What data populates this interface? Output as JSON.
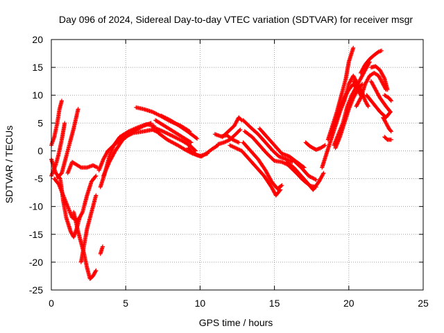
{
  "chart_data": {
    "type": "scatter",
    "title": "Day 096 of 2024, Sidereal Day-to-day VTEC variation (SDTVAR) for receiver msgr",
    "xlabel": "GPS time / hours",
    "ylabel": "SDTVAR / TECUs",
    "xlim": [
      0,
      25
    ],
    "ylim": [
      -25,
      20
    ],
    "xticks": [
      0,
      5,
      10,
      15,
      20,
      25
    ],
    "yticks": [
      -25,
      -20,
      -15,
      -10,
      -5,
      0,
      5,
      10,
      15,
      20
    ],
    "grid": true,
    "marker": "+",
    "color": "#ff0000",
    "series": [
      {
        "points": [
          [
            0.0,
            1.0
          ],
          [
            0.2,
            2.5
          ],
          [
            0.4,
            5
          ],
          [
            0.55,
            7.5
          ],
          [
            0.7,
            9
          ]
        ]
      },
      {
        "points": [
          [
            0.0,
            -1.5
          ],
          [
            0.3,
            -4
          ],
          [
            0.6,
            -5
          ],
          [
            0.8,
            -9
          ],
          [
            1.0,
            -12
          ],
          [
            1.3,
            -14.5
          ],
          [
            1.5,
            -15.5
          ],
          [
            1.7,
            -14
          ],
          [
            1.9,
            -12
          ]
        ]
      },
      {
        "points": [
          [
            0.0,
            -4.5
          ],
          [
            0.3,
            -2.5
          ],
          [
            0.5,
            -0.5
          ],
          [
            0.7,
            2
          ],
          [
            0.9,
            5
          ]
        ]
      },
      {
        "points": [
          [
            0.4,
            -4.8
          ],
          [
            0.7,
            -4
          ],
          [
            0.9,
            -2
          ],
          [
            1.2,
            1
          ],
          [
            1.5,
            4
          ],
          [
            1.8,
            7.5
          ]
        ]
      },
      {
        "points": [
          [
            0.2,
            -5
          ],
          [
            0.5,
            -6
          ],
          [
            0.8,
            -8
          ],
          [
            1.1,
            -10
          ],
          [
            1.4,
            -12
          ],
          [
            1.8,
            -12.5
          ],
          [
            2.1,
            -11
          ],
          [
            2.4,
            -8
          ],
          [
            2.7,
            -5.5
          ],
          [
            3.0,
            -4.5
          ]
        ]
      },
      {
        "points": [
          [
            1.1,
            -4
          ],
          [
            1.4,
            -2
          ],
          [
            1.7,
            -2.5
          ],
          [
            2.0,
            -3
          ],
          [
            2.4,
            -3
          ],
          [
            2.8,
            -2.6
          ],
          [
            3.1,
            -3
          ]
        ]
      },
      {
        "points": [
          [
            1.5,
            -11
          ],
          [
            1.8,
            -14.5
          ],
          [
            2.0,
            -16.5
          ],
          [
            2.2,
            -18.5
          ],
          [
            2.4,
            -21
          ],
          [
            2.6,
            -23
          ],
          [
            2.8,
            -22.5
          ],
          [
            3.0,
            -21.5
          ]
        ]
      },
      {
        "points": [
          [
            2.0,
            -20
          ],
          [
            2.2,
            -17
          ],
          [
            2.4,
            -14
          ],
          [
            2.6,
            -12
          ],
          [
            2.8,
            -10
          ],
          [
            3.0,
            -8
          ]
        ]
      },
      {
        "points": [
          [
            3.3,
            -18.5
          ],
          [
            3.45,
            -17.2
          ]
        ]
      },
      {
        "points": [
          [
            3.2,
            -3.5
          ],
          [
            3.5,
            -1.5
          ],
          [
            3.8,
            0
          ],
          [
            4.2,
            1
          ],
          [
            4.8,
            2.3
          ],
          [
            5.5,
            3.2
          ],
          [
            6.2,
            3.5
          ],
          [
            6.8,
            3.8
          ],
          [
            7.2,
            3.3
          ]
        ]
      },
      {
        "points": [
          [
            3.3,
            -6.5
          ],
          [
            3.6,
            -4
          ],
          [
            3.9,
            -1
          ],
          [
            4.2,
            1
          ],
          [
            4.6,
            2.5
          ],
          [
            5.2,
            3.5
          ],
          [
            5.8,
            4.2
          ],
          [
            6.4,
            4.8
          ],
          [
            6.9,
            4.5
          ]
        ]
      },
      {
        "points": [
          [
            3.5,
            -4.5
          ],
          [
            3.9,
            -2
          ],
          [
            4.3,
            0
          ],
          [
            4.8,
            2
          ],
          [
            5.5,
            3.5
          ],
          [
            6.2,
            4.5
          ],
          [
            6.7,
            5
          ]
        ]
      },
      {
        "points": [
          [
            5.7,
            7.8
          ],
          [
            6.2,
            7.5
          ],
          [
            6.8,
            7
          ],
          [
            7.4,
            6.2
          ],
          [
            8.0,
            5.3
          ],
          [
            8.7,
            4.5
          ],
          [
            9.3,
            3.5
          ]
        ]
      },
      {
        "points": [
          [
            6.8,
            4.3
          ],
          [
            7.5,
            3.5
          ],
          [
            8.2,
            2.6
          ],
          [
            8.8,
            1.8
          ],
          [
            9.3,
            1
          ],
          [
            9.7,
            0
          ]
        ]
      },
      {
        "points": [
          [
            7.2,
            3.2
          ],
          [
            7.8,
            2
          ],
          [
            8.5,
            1
          ],
          [
            9.0,
            0.2
          ],
          [
            9.5,
            -0.5
          ],
          [
            10.0,
            -0.9
          ],
          [
            10.5,
            -0.5
          ]
        ]
      },
      {
        "points": [
          [
            7.0,
            5.5
          ],
          [
            7.6,
            4.5
          ],
          [
            8.2,
            3.5
          ],
          [
            8.8,
            2.5
          ],
          [
            9.4,
            1.5
          ]
        ]
      },
      {
        "points": [
          [
            7.4,
            6.3
          ],
          [
            8.0,
            5.5
          ],
          [
            8.6,
            4.5
          ],
          [
            9.2,
            3.4
          ],
          [
            9.8,
            2.2
          ]
        ]
      },
      {
        "points": [
          [
            9.2,
            0.5
          ],
          [
            9.5,
            -0.3
          ],
          [
            9.8,
            -0.8
          ],
          [
            10.1,
            -1
          ],
          [
            10.4,
            -0.5
          ],
          [
            10.8,
            0.3
          ],
          [
            11.2,
            1
          ]
        ]
      },
      {
        "points": [
          [
            11.0,
            3
          ],
          [
            11.4,
            2.6
          ],
          [
            11.8,
            2.8
          ],
          [
            12.2,
            2
          ],
          [
            12.6,
            1.5
          ]
        ]
      },
      {
        "points": [
          [
            11.2,
            1.2
          ],
          [
            11.6,
            1.5
          ],
          [
            12.0,
            2
          ],
          [
            12.4,
            3
          ],
          [
            12.7,
            3.8
          ]
        ]
      },
      {
        "points": [
          [
            11.5,
            2.5
          ],
          [
            11.9,
            3.5
          ],
          [
            12.3,
            4.5
          ],
          [
            12.6,
            6
          ],
          [
            12.8,
            5.5
          ]
        ]
      },
      {
        "points": [
          [
            12.0,
            1
          ],
          [
            12.4,
            0.5
          ],
          [
            12.8,
            0
          ],
          [
            13.3,
            -1.5
          ],
          [
            13.8,
            -3
          ],
          [
            14.3,
            -4.5
          ],
          [
            14.8,
            -6.5
          ],
          [
            15.1,
            -8
          ],
          [
            15.4,
            -7
          ]
        ]
      },
      {
        "points": [
          [
            12.9,
            1.5
          ],
          [
            13.4,
            0
          ],
          [
            13.9,
            -1.5
          ],
          [
            14.4,
            -3.5
          ],
          [
            14.8,
            -5.5
          ],
          [
            15.2,
            -6.8
          ],
          [
            15.5,
            -6.2
          ]
        ]
      },
      {
        "points": [
          [
            13.0,
            3.5
          ],
          [
            13.5,
            2.5
          ],
          [
            14.0,
            1
          ],
          [
            14.5,
            -0.5
          ],
          [
            15.0,
            -1.8
          ],
          [
            15.5,
            -2
          ],
          [
            15.9,
            -2.5
          ]
        ]
      },
      {
        "points": [
          [
            12.9,
            5.5
          ],
          [
            13.4,
            4.2
          ],
          [
            13.9,
            3
          ],
          [
            14.4,
            1.5
          ],
          [
            14.9,
            0
          ],
          [
            15.3,
            -1
          ],
          [
            15.8,
            -1.5
          ],
          [
            16.2,
            -2
          ]
        ]
      },
      {
        "points": [
          [
            14.0,
            4
          ],
          [
            14.5,
            2.5
          ],
          [
            15.0,
            1
          ],
          [
            15.5,
            -0.5
          ],
          [
            16.0,
            -1
          ],
          [
            16.5,
            -2
          ],
          [
            17.0,
            -3
          ]
        ]
      },
      {
        "points": [
          [
            15.8,
            -2
          ],
          [
            16.3,
            -3
          ],
          [
            16.8,
            -4.5
          ],
          [
            17.3,
            -6
          ],
          [
            17.6,
            -7
          ],
          [
            18.0,
            -5.5
          ],
          [
            18.3,
            -4
          ]
        ]
      },
      {
        "points": [
          [
            15.9,
            -2.5
          ],
          [
            16.4,
            -3.8
          ],
          [
            16.9,
            -5.2
          ],
          [
            17.4,
            -6.3
          ],
          [
            17.8,
            -6.5
          ]
        ]
      },
      {
        "points": [
          [
            16.2,
            -1.5
          ],
          [
            16.8,
            -3
          ],
          [
            17.3,
            -4.5
          ],
          [
            17.8,
            -5.2
          ]
        ]
      },
      {
        "points": [
          [
            17.1,
            1.5
          ],
          [
            17.4,
            0.8
          ],
          [
            17.8,
            0.2
          ],
          [
            18.1,
            0.5
          ],
          [
            18.4,
            1
          ]
        ]
      },
      {
        "points": [
          [
            18.2,
            -3
          ],
          [
            18.5,
            -0.5
          ],
          [
            18.8,
            2
          ],
          [
            19.1,
            4.5
          ],
          [
            19.4,
            7
          ],
          [
            19.7,
            9
          ],
          [
            20.0,
            12
          ],
          [
            20.3,
            13.5
          ],
          [
            20.6,
            12
          ]
        ]
      },
      {
        "points": [
          [
            18.6,
            2
          ],
          [
            18.9,
            4.5
          ],
          [
            19.2,
            7
          ],
          [
            19.5,
            10
          ],
          [
            19.8,
            13
          ],
          [
            20.0,
            16
          ],
          [
            20.3,
            18.5
          ]
        ]
      },
      {
        "points": [
          [
            18.8,
            3
          ],
          [
            19.1,
            5
          ],
          [
            19.4,
            7.5
          ],
          [
            19.7,
            9.5
          ],
          [
            20.0,
            11
          ],
          [
            20.3,
            12
          ],
          [
            20.6,
            11
          ],
          [
            20.8,
            10
          ]
        ]
      },
      {
        "points": [
          [
            19.0,
            1
          ],
          [
            19.3,
            3
          ],
          [
            19.6,
            5
          ],
          [
            19.9,
            8
          ],
          [
            20.2,
            10
          ],
          [
            20.5,
            11.5
          ],
          [
            20.8,
            13
          ],
          [
            21.1,
            14.5
          ],
          [
            21.4,
            16
          ]
        ]
      },
      {
        "points": [
          [
            19.1,
            0.5
          ],
          [
            19.4,
            2.5
          ],
          [
            19.7,
            5
          ],
          [
            20.0,
            7.5
          ],
          [
            20.3,
            9.5
          ],
          [
            20.6,
            11
          ],
          [
            20.9,
            12
          ]
        ]
      },
      {
        "points": [
          [
            20.3,
            12.5
          ],
          [
            20.6,
            12
          ],
          [
            20.9,
            10.5
          ],
          [
            21.1,
            9
          ],
          [
            21.3,
            8
          ]
        ]
      },
      {
        "points": [
          [
            20.5,
            8
          ],
          [
            20.8,
            9.5
          ],
          [
            21.1,
            12
          ],
          [
            21.4,
            13.5
          ],
          [
            21.7,
            14
          ],
          [
            22.0,
            13.5
          ],
          [
            22.3,
            12
          ],
          [
            22.5,
            11
          ]
        ]
      },
      {
        "points": [
          [
            20.8,
            14
          ],
          [
            21.1,
            15.5
          ],
          [
            21.4,
            16.5
          ],
          [
            21.7,
            17.2
          ],
          [
            22.0,
            17.8
          ],
          [
            22.2,
            18
          ]
        ]
      },
      {
        "points": [
          [
            21.5,
            15
          ],
          [
            21.8,
            15.2
          ],
          [
            22.1,
            14.5
          ],
          [
            22.4,
            13
          ],
          [
            22.6,
            11
          ]
        ]
      },
      {
        "points": [
          [
            21.2,
            10
          ],
          [
            21.5,
            9
          ],
          [
            21.8,
            8
          ],
          [
            22.1,
            7
          ],
          [
            22.5,
            6
          ],
          [
            22.8,
            7
          ]
        ]
      },
      {
        "points": [
          [
            21.5,
            12.5
          ],
          [
            21.8,
            11
          ],
          [
            22.1,
            9.5
          ],
          [
            22.5,
            8
          ],
          [
            22.8,
            7
          ]
        ]
      },
      {
        "points": [
          [
            22.4,
            10
          ],
          [
            22.7,
            9.5
          ],
          [
            22.85,
            9
          ]
        ]
      },
      {
        "points": [
          [
            22.3,
            6
          ],
          [
            22.5,
            5
          ],
          [
            22.7,
            4
          ],
          [
            22.85,
            3.5
          ]
        ]
      },
      {
        "points": [
          [
            22.4,
            2.5
          ],
          [
            22.6,
            2
          ],
          [
            22.85,
            2
          ]
        ]
      }
    ]
  }
}
